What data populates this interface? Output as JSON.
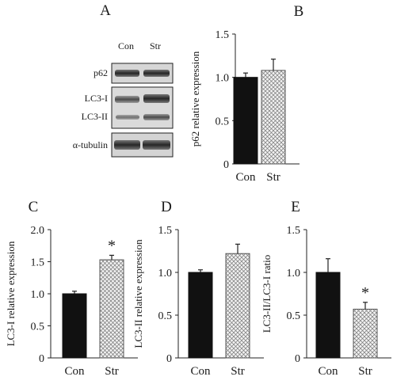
{
  "figure": {
    "blot": {
      "letter": "A",
      "lanes": [
        "Con",
        "Str"
      ],
      "bands": [
        {
          "id": "p62",
          "labels": [
            "p62"
          ]
        },
        {
          "id": "lc3",
          "labels": [
            "LC3-I",
            "LC3-II"
          ]
        },
        {
          "id": "tubulin",
          "labels": [
            "α-tubulin"
          ]
        }
      ]
    }
  },
  "chart_data": [
    {
      "letter": "B",
      "type": "bar",
      "categories": [
        "Con",
        "Str"
      ],
      "values": [
        1.0,
        1.08
      ],
      "errors": [
        0.05,
        0.13
      ],
      "significant": [
        false,
        false
      ],
      "sig_marker": "",
      "ylabel": "p62 relative expression",
      "ylim": [
        0,
        1.5
      ],
      "yticks": [
        "0",
        "0.5",
        "1.0",
        "1.5"
      ],
      "bar_styles": [
        "solid",
        "crosshatch"
      ],
      "colors": {
        "solid": "#111111",
        "hatch_bg": "#f2f2f2",
        "hatch_line": "#777777"
      }
    },
    {
      "letter": "C",
      "type": "bar",
      "categories": [
        "Con",
        "Str"
      ],
      "values": [
        1.0,
        1.53
      ],
      "errors": [
        0.04,
        0.07
      ],
      "significant": [
        false,
        true
      ],
      "sig_marker": "*",
      "ylabel": "LC3-I relative expression",
      "ylim": [
        0,
        2.0
      ],
      "yticks": [
        "0",
        "0.5",
        "1.0",
        "1.5",
        "2.0"
      ],
      "bar_styles": [
        "solid",
        "crosshatch"
      ],
      "colors": {
        "solid": "#111111",
        "hatch_bg": "#f2f2f2",
        "hatch_line": "#777777"
      }
    },
    {
      "letter": "D",
      "type": "bar",
      "categories": [
        "Con",
        "Str"
      ],
      "values": [
        1.0,
        1.22
      ],
      "errors": [
        0.03,
        0.11
      ],
      "significant": [
        false,
        false
      ],
      "sig_marker": "",
      "ylabel": "LC3-II relative expression",
      "ylim": [
        0,
        1.5
      ],
      "yticks": [
        "0",
        "0.5",
        "1.0",
        "1.5"
      ],
      "bar_styles": [
        "solid",
        "crosshatch"
      ],
      "colors": {
        "solid": "#111111",
        "hatch_bg": "#f2f2f2",
        "hatch_line": "#777777"
      }
    },
    {
      "letter": "E",
      "type": "bar",
      "categories": [
        "Con",
        "Str"
      ],
      "values": [
        1.0,
        0.57
      ],
      "errors": [
        0.16,
        0.08
      ],
      "significant": [
        false,
        true
      ],
      "sig_marker": "*",
      "ylabel": "LC3-II/LC3-I ratio",
      "ylim": [
        0,
        1.5
      ],
      "yticks": [
        "0",
        "0.5",
        "1.0",
        "1.5"
      ],
      "bar_styles": [
        "solid",
        "crosshatch"
      ],
      "colors": {
        "solid": "#111111",
        "hatch_bg": "#f2f2f2",
        "hatch_line": "#777777"
      }
    }
  ]
}
